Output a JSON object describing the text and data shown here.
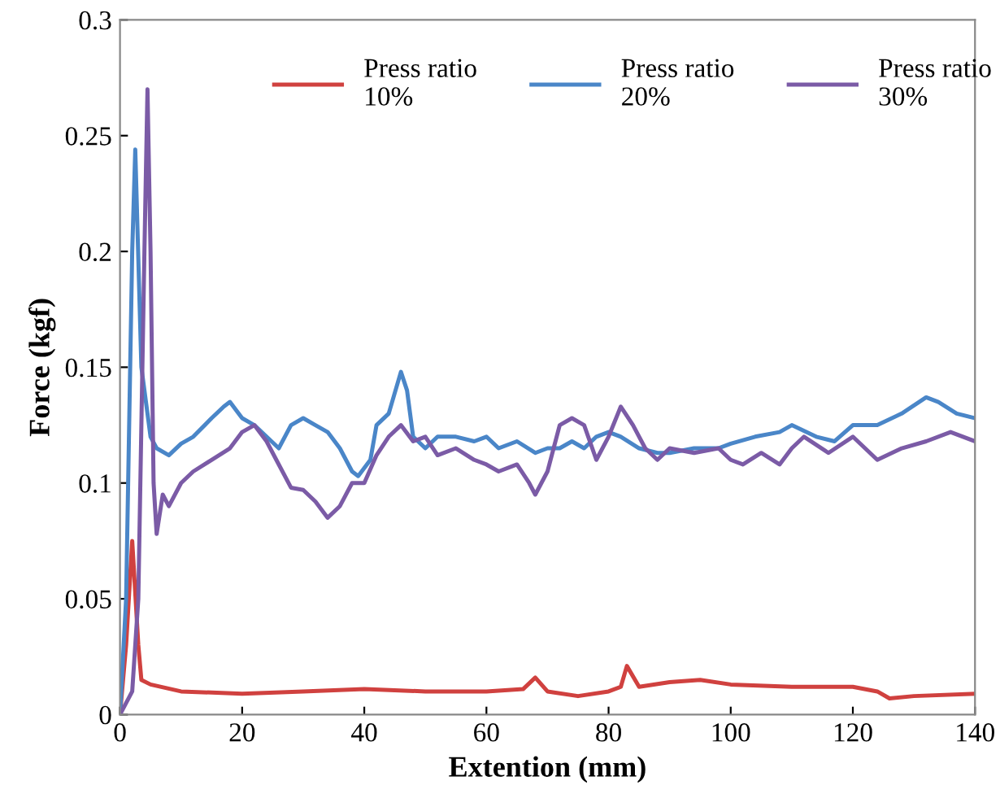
{
  "chart_data": {
    "type": "line",
    "xlabel": "Extention (mm)",
    "ylabel": "Force (kgf)",
    "xlim": [
      0,
      140
    ],
    "ylim": [
      0,
      0.3
    ],
    "xticks": [
      0,
      20,
      40,
      60,
      80,
      100,
      120,
      140
    ],
    "yticks": [
      0,
      0.05,
      0.1,
      0.15,
      0.2,
      0.25,
      0.3
    ],
    "grid": false,
    "legend": "top",
    "line_style": "solid",
    "marker": "none",
    "series": [
      {
        "name": "Press ratio\n10%",
        "color": "#d0413f",
        "x": [
          0,
          1,
          2,
          3,
          3.5,
          5,
          10,
          20,
          30,
          40,
          50,
          60,
          66,
          68,
          70,
          75,
          80,
          82,
          83,
          85,
          90,
          95,
          100,
          110,
          120,
          124,
          126,
          130,
          140
        ],
        "values": [
          0,
          0.03,
          0.075,
          0.03,
          0.015,
          0.013,
          0.01,
          0.009,
          0.01,
          0.011,
          0.01,
          0.01,
          0.011,
          0.016,
          0.01,
          0.008,
          0.01,
          0.012,
          0.021,
          0.012,
          0.014,
          0.015,
          0.013,
          0.012,
          0.012,
          0.01,
          0.007,
          0.008,
          0.009
        ]
      },
      {
        "name": "Press ratio\n20%",
        "color": "#4a86c8",
        "x": [
          0,
          1,
          2,
          2.5,
          3.5,
          5,
          6,
          8,
          10,
          12,
          15,
          17,
          18,
          20,
          22,
          24,
          26,
          28,
          30,
          32,
          34,
          36,
          38,
          39,
          41,
          42,
          44,
          46,
          47,
          48,
          50,
          52,
          55,
          58,
          60,
          62,
          65,
          68,
          70,
          72,
          74,
          76,
          78,
          80,
          82,
          85,
          88,
          90,
          94,
          98,
          100,
          104,
          108,
          110,
          114,
          117,
          120,
          124,
          128,
          132,
          134,
          137,
          140
        ],
        "values": [
          0,
          0.05,
          0.2,
          0.244,
          0.15,
          0.12,
          0.115,
          0.112,
          0.117,
          0.12,
          0.128,
          0.133,
          0.135,
          0.128,
          0.125,
          0.12,
          0.115,
          0.125,
          0.128,
          0.125,
          0.122,
          0.115,
          0.105,
          0.103,
          0.11,
          0.125,
          0.13,
          0.148,
          0.14,
          0.12,
          0.115,
          0.12,
          0.12,
          0.118,
          0.12,
          0.115,
          0.118,
          0.113,
          0.115,
          0.115,
          0.118,
          0.115,
          0.12,
          0.122,
          0.12,
          0.115,
          0.113,
          0.113,
          0.115,
          0.115,
          0.117,
          0.12,
          0.122,
          0.125,
          0.12,
          0.118,
          0.125,
          0.125,
          0.13,
          0.137,
          0.135,
          0.13,
          0.128
        ]
      },
      {
        "name": "Press ratio\n30%",
        "color": "#7b5ba6",
        "x": [
          0,
          2,
          3,
          4,
          4.5,
          5,
          5.5,
          6,
          7,
          8,
          10,
          12,
          15,
          18,
          20,
          22,
          24,
          26,
          28,
          30,
          32,
          34,
          36,
          38,
          40,
          42,
          44,
          46,
          48,
          50,
          52,
          55,
          58,
          60,
          62,
          65,
          67,
          68,
          70,
          72,
          74,
          76,
          78,
          80,
          82,
          84,
          86,
          88,
          90,
          94,
          98,
          100,
          102,
          105,
          108,
          110,
          112,
          116,
          120,
          124,
          128,
          132,
          136,
          140
        ],
        "values": [
          0,
          0.01,
          0.05,
          0.2,
          0.27,
          0.2,
          0.1,
          0.078,
          0.095,
          0.09,
          0.1,
          0.105,
          0.11,
          0.115,
          0.122,
          0.125,
          0.118,
          0.108,
          0.098,
          0.097,
          0.092,
          0.085,
          0.09,
          0.1,
          0.1,
          0.112,
          0.12,
          0.125,
          0.118,
          0.12,
          0.112,
          0.115,
          0.11,
          0.108,
          0.105,
          0.108,
          0.1,
          0.095,
          0.105,
          0.125,
          0.128,
          0.125,
          0.11,
          0.12,
          0.133,
          0.125,
          0.115,
          0.11,
          0.115,
          0.113,
          0.115,
          0.11,
          0.108,
          0.113,
          0.108,
          0.115,
          0.12,
          0.113,
          0.12,
          0.11,
          0.115,
          0.118,
          0.122,
          0.118
        ]
      }
    ]
  }
}
